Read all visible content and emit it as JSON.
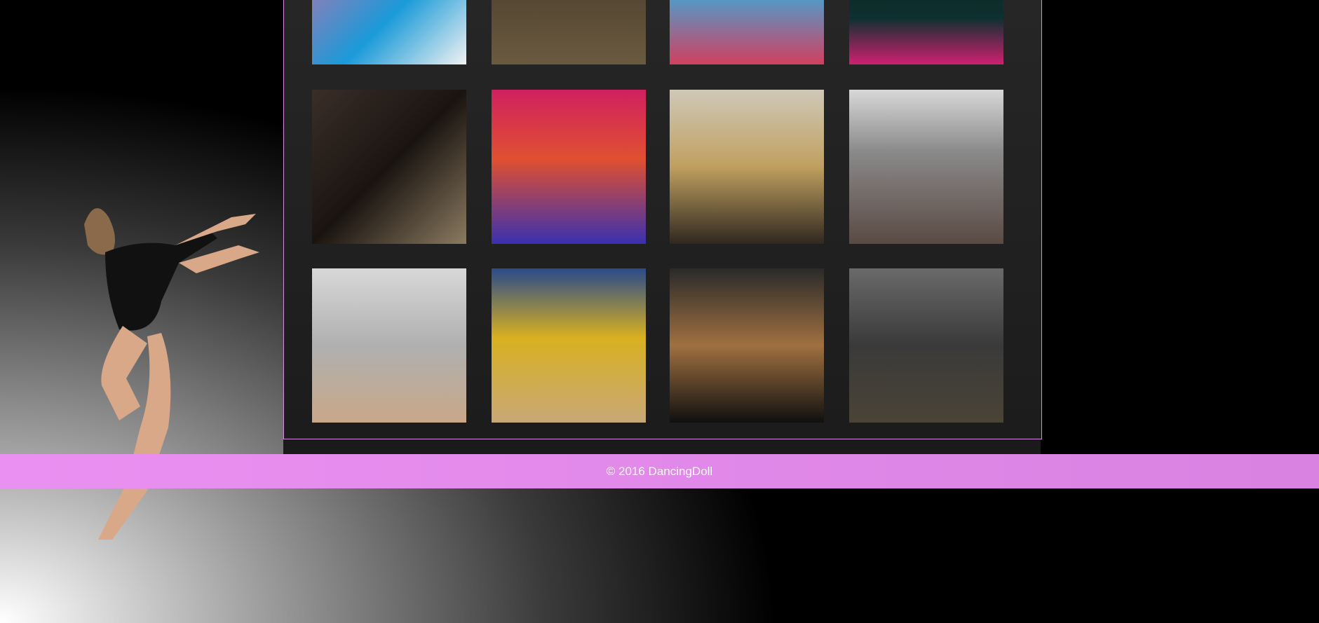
{
  "footer": {
    "text": "© 2016 DancingDoll"
  }
}
